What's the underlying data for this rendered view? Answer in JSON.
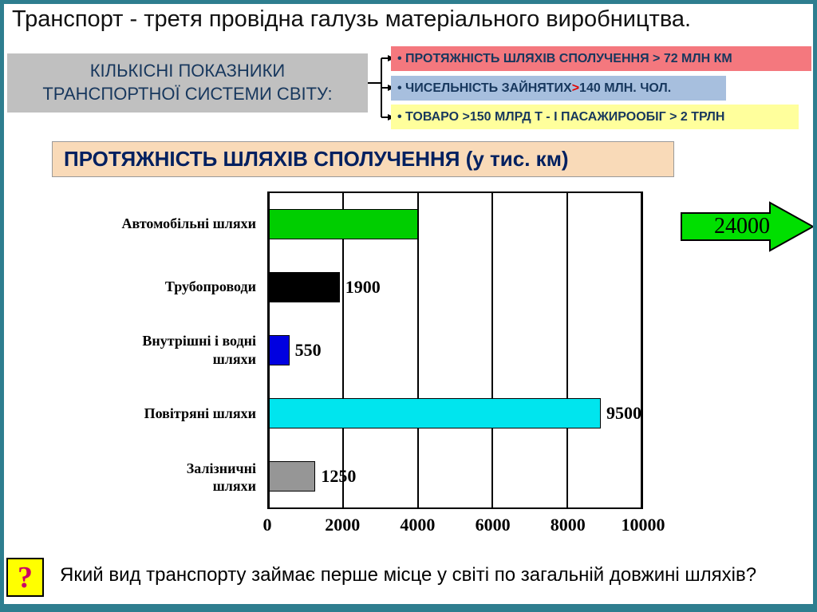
{
  "slide": {
    "title": "Транспорт - третя провідна галузь матеріального виробництва.",
    "header_box": {
      "line1": "КІЛЬКІСНІ ПОКАЗНИКИ",
      "line2": "ТРАНСПОРТНОЇ СИСТЕМИ СВІТУ:"
    },
    "indicator_boxes": [
      {
        "text": "• ПРОТЯЖНІСТЬ ШЛЯХІВ СПОЛУЧЕННЯ > 72 МЛН КМ",
        "color": "#f4787e"
      },
      {
        "prefix": "• ЧИСЕЛЬНІСТЬ ЗАЙНЯТИХ ",
        "gt": ">",
        "suffix": " 140 МЛН. ЧОЛ.",
        "color": "#a7bfde"
      },
      {
        "text": "• ТОВАРО >150 МЛРД Т - І ПАСАЖИРООБІГ > 2 ТРЛН",
        "color": "#ffff9c"
      }
    ],
    "chart_title": "ПРОТЯЖНІСТЬ ШЛЯХІВ СПОЛУЧЕННЯ (у тис. км)",
    "arrow_label": "24000",
    "question_mark": "?",
    "question": "Який вид транспорту займає перше місце у світі по загальній довжині шляхів?"
  },
  "chart_data": {
    "type": "bar",
    "orientation": "horizontal",
    "title": "ПРОТЯЖНІСТЬ ШЛЯХІВ СПОЛУЧЕННЯ (у тис. км)",
    "unit": "тис. км",
    "categories": [
      "Автомобільні шляхи",
      "Трубопроводи",
      "Внутрішні і водні шляхи",
      "Повітряні шляхи",
      "Залізничні шляхи"
    ],
    "category_display": [
      "Автомобільні шляхи",
      "Трубопроводи",
      "Внутрішні і водні\nшляхи",
      "Повітряні шляхи",
      "Залізничні\nшляхи"
    ],
    "values": [
      24000,
      1900,
      550,
      9500,
      1250
    ],
    "bar_display_values": [
      4000,
      1900,
      550,
      9500,
      1250
    ],
    "data_labels": [
      "",
      "1900",
      "550",
      "9500",
      "1250"
    ],
    "bar_colors": [
      "#00ce00",
      "#000000",
      "#0000e0",
      "#00e5ee",
      "#969696"
    ],
    "xlim": [
      0,
      10000
    ],
    "x_ticks": [
      0,
      2000,
      4000,
      6000,
      8000,
      10000
    ],
    "grid": true,
    "legend": false,
    "annotation": {
      "text": "24000",
      "applies_to": "Автомобільні шляхи",
      "note": "green arrow — bar clipped at chart edge (4000), actual value 24000"
    }
  }
}
